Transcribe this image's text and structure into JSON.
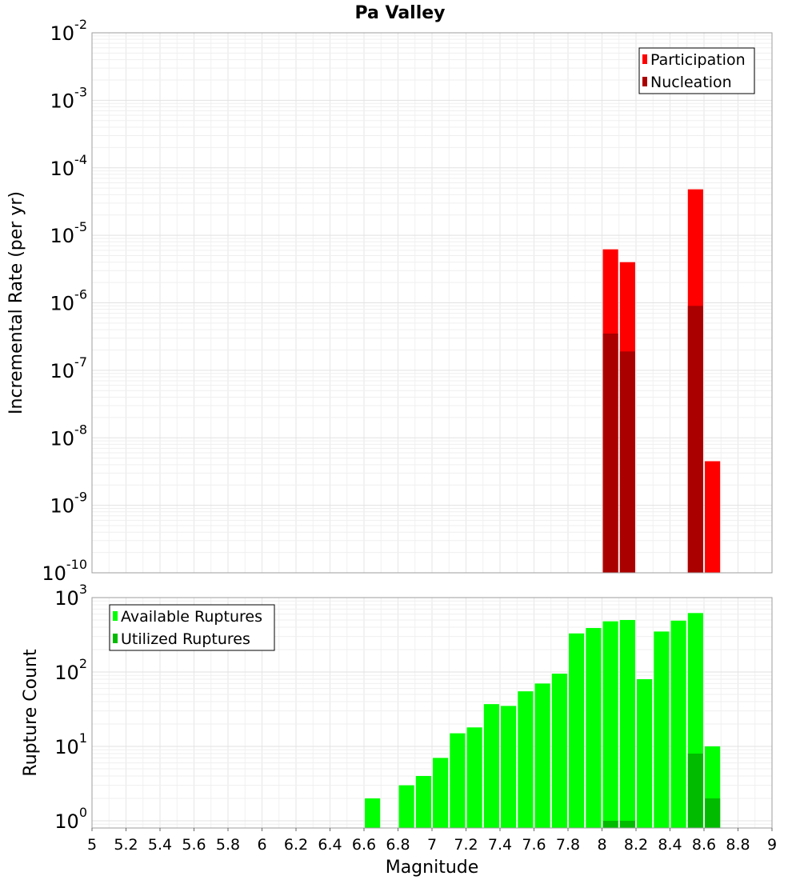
{
  "figure_title": "Pa Valley",
  "xlabel": "Magnitude",
  "chart_data": [
    {
      "type": "bar",
      "panel": "top",
      "title": "Pa Valley",
      "xlabel": "",
      "ylabel": "Incremental Rate (per yr)",
      "yscale": "log",
      "xlim": [
        5,
        9
      ],
      "ylim": [
        1e-10,
        0.01
      ],
      "x_ticks": [
        "5",
        "5.2",
        "5.4",
        "5.6",
        "5.8",
        "6",
        "6.2",
        "6.4",
        "6.6",
        "6.8",
        "7",
        "7.2",
        "7.4",
        "7.6",
        "7.8",
        "8",
        "8.2",
        "8.4",
        "8.6",
        "8.8",
        "9"
      ],
      "y_ticks": [
        {
          "base": "10",
          "exp": "-10",
          "value": 1e-10
        },
        {
          "base": "10",
          "exp": "-9",
          "value": 1e-09
        },
        {
          "base": "10",
          "exp": "-8",
          "value": 1e-08
        },
        {
          "base": "10",
          "exp": "-7",
          "value": 1e-07
        },
        {
          "base": "10",
          "exp": "-6",
          "value": 1e-06
        },
        {
          "base": "10",
          "exp": "-5",
          "value": 1e-05
        },
        {
          "base": "10",
          "exp": "-4",
          "value": 0.0001
        },
        {
          "base": "10",
          "exp": "-3",
          "value": 0.001
        },
        {
          "base": "10",
          "exp": "-2",
          "value": 0.01
        }
      ],
      "legend_position": "top-right",
      "grid": true,
      "bar_width": 0.09,
      "series": [
        {
          "name": "Participation",
          "color": "#ff0000",
          "x": [
            8.05,
            8.15,
            8.55,
            8.65
          ],
          "values": [
            6.2e-06,
            4e-06,
            4.8e-05,
            4.5e-09
          ]
        },
        {
          "name": "Nucleation",
          "color": "#aa0000",
          "x": [
            8.05,
            8.15,
            8.55
          ],
          "values": [
            3.5e-07,
            1.9e-07,
            9e-07
          ]
        }
      ]
    },
    {
      "type": "bar",
      "panel": "bottom",
      "title": "",
      "xlabel": "Magnitude",
      "ylabel": "Rupture Count",
      "yscale": "log",
      "xlim": [
        5,
        9
      ],
      "ylim": [
        0.8,
        1000
      ],
      "x_ticks": [
        "5",
        "5.2",
        "5.4",
        "5.6",
        "5.8",
        "6",
        "6.2",
        "6.4",
        "6.6",
        "6.8",
        "7",
        "7.2",
        "7.4",
        "7.6",
        "7.8",
        "8",
        "8.2",
        "8.4",
        "8.6",
        "8.8",
        "9"
      ],
      "y_ticks": [
        {
          "base": "10",
          "exp": "0",
          "value": 1
        },
        {
          "base": "10",
          "exp": "1",
          "value": 10
        },
        {
          "base": "10",
          "exp": "2",
          "value": 100
        },
        {
          "base": "10",
          "exp": "3",
          "value": 1000
        }
      ],
      "legend_position": "top-left",
      "grid": true,
      "bar_width": 0.09,
      "series": [
        {
          "name": "Available Ruptures",
          "color": "#00ff00",
          "x": [
            6.65,
            6.85,
            6.95,
            7.05,
            7.15,
            7.25,
            7.35,
            7.45,
            7.55,
            7.65,
            7.75,
            7.85,
            7.95,
            8.05,
            8.15,
            8.25,
            8.35,
            8.45,
            8.55,
            8.65
          ],
          "values": [
            2,
            3,
            4,
            7,
            15,
            18,
            37,
            35,
            55,
            70,
            95,
            330,
            390,
            480,
            500,
            80,
            350,
            490,
            620,
            10
          ]
        },
        {
          "name": "Utilized Ruptures",
          "color": "#00bb00",
          "x": [
            8.05,
            8.15,
            8.55,
            8.65
          ],
          "values": [
            1,
            1,
            8,
            2
          ]
        }
      ]
    }
  ]
}
